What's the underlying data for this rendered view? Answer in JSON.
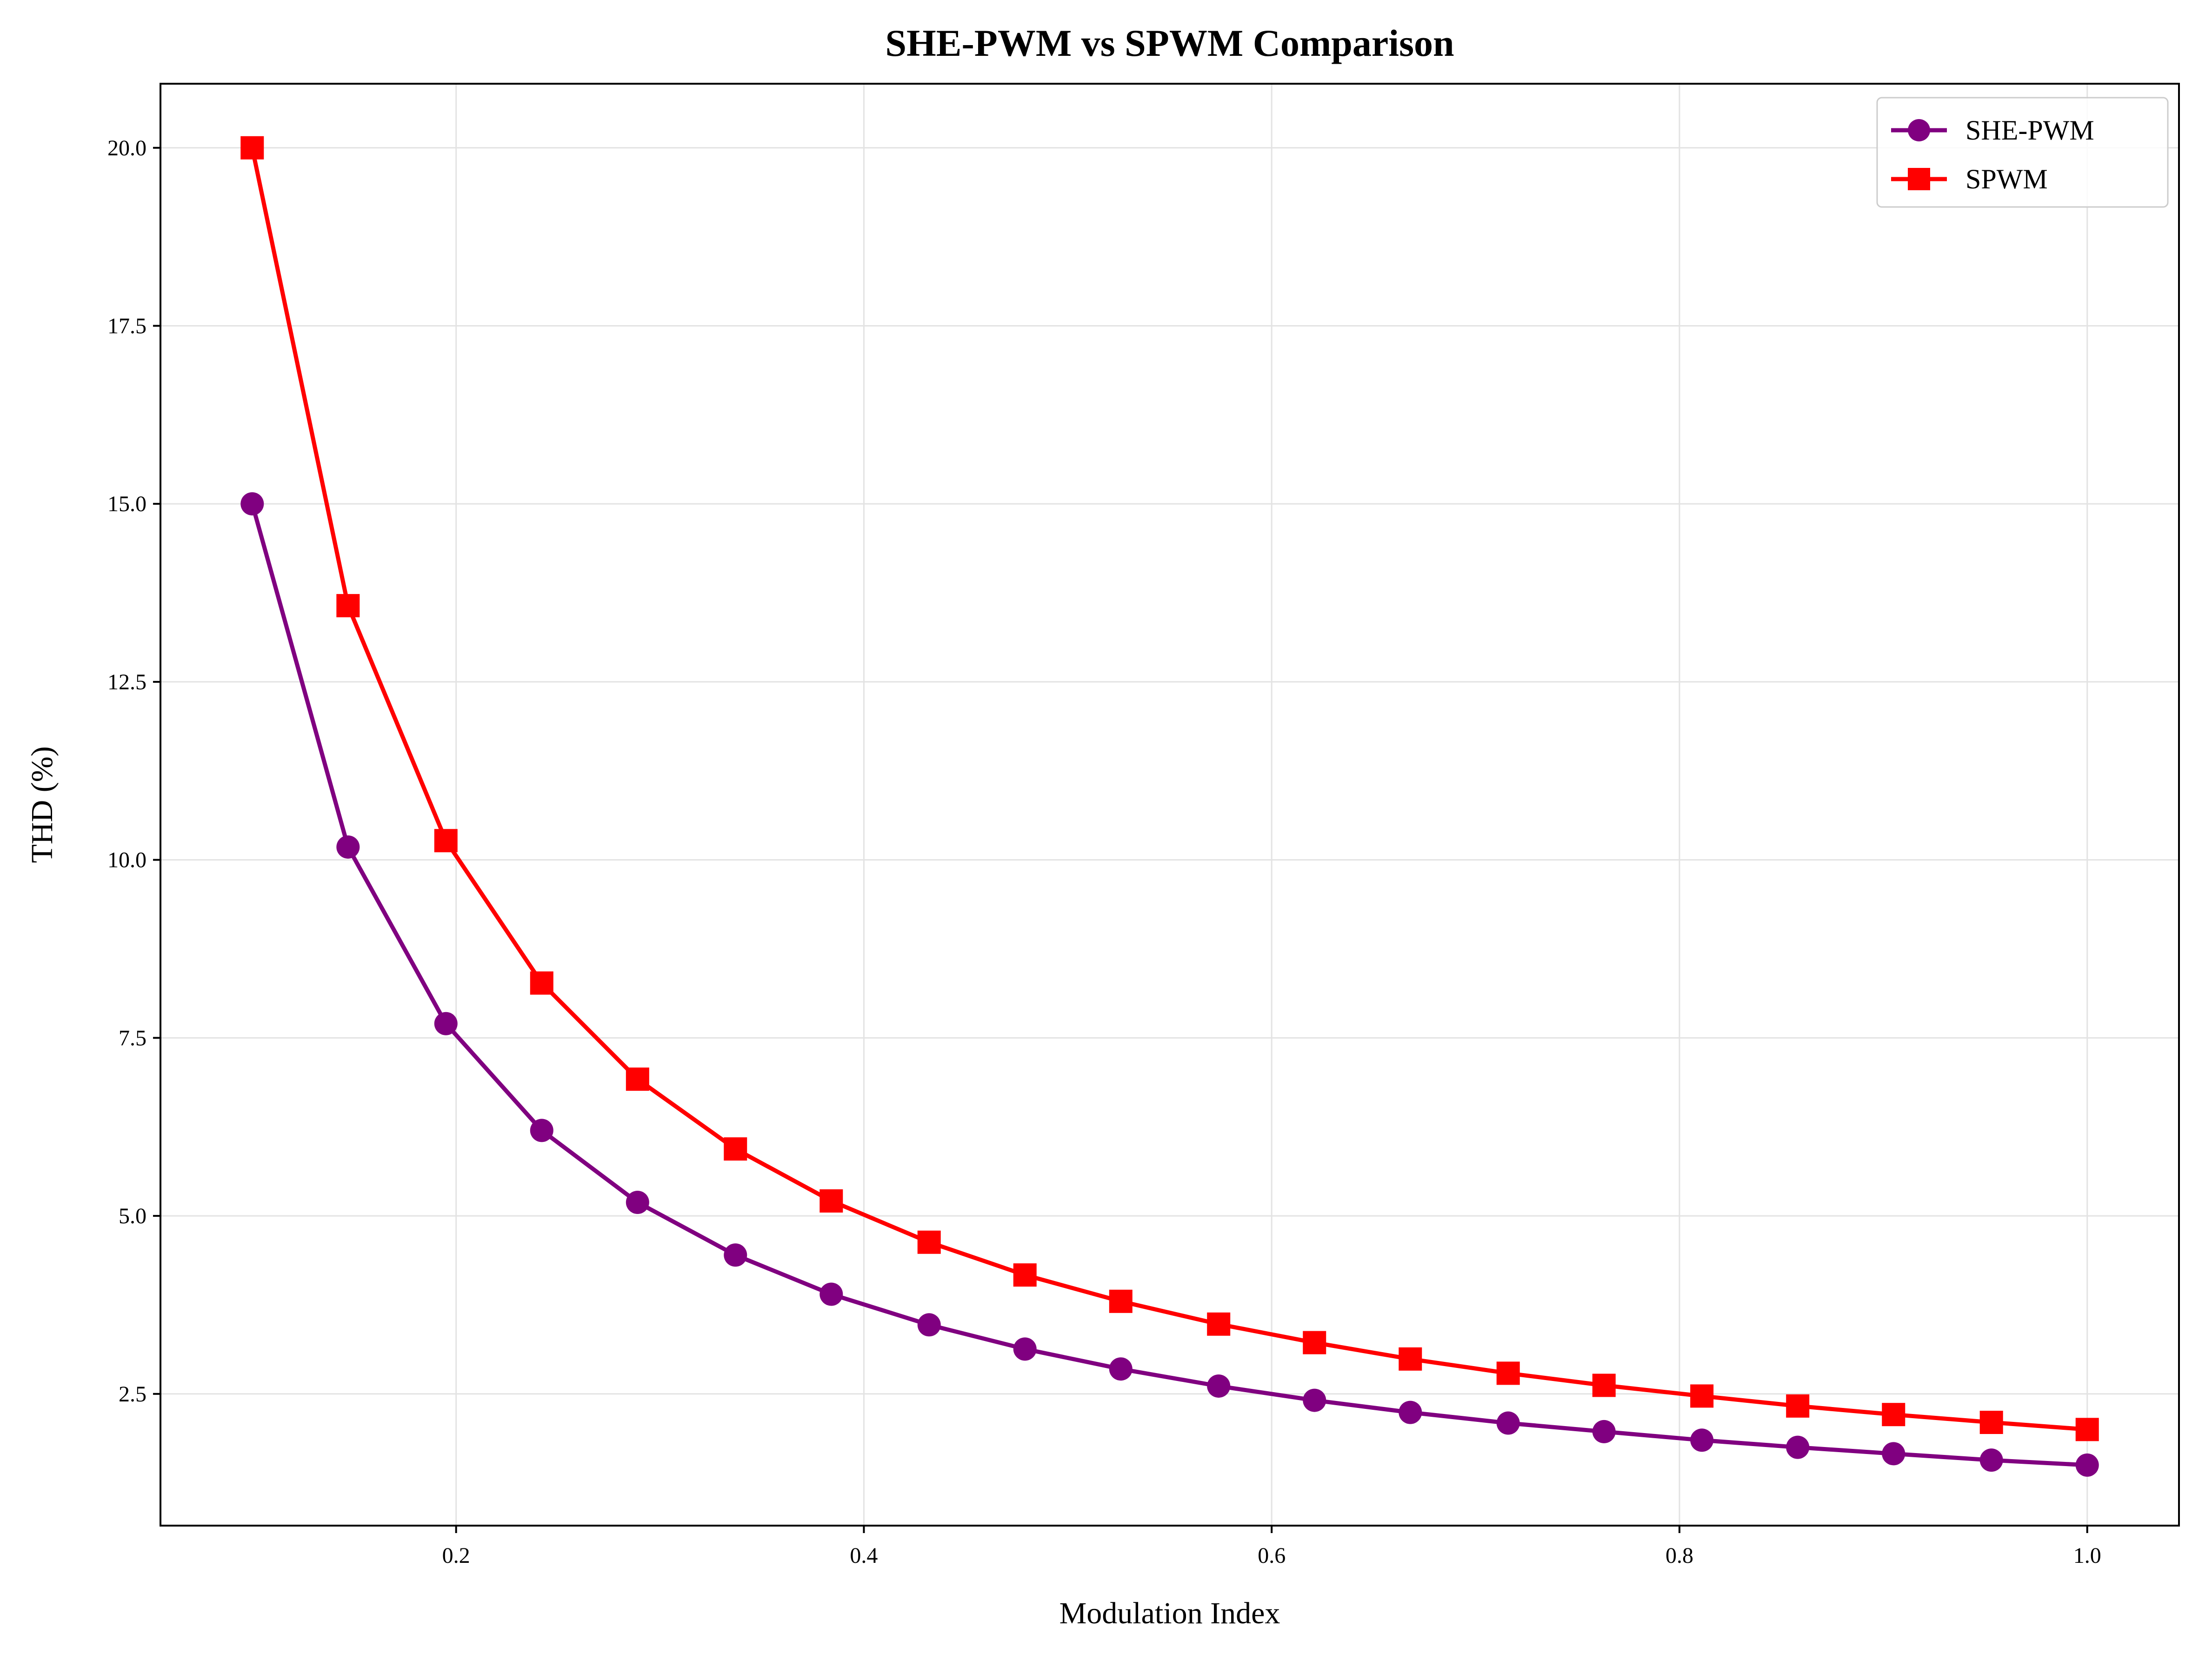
{
  "chart_data": {
    "type": "line",
    "title": "SHE-PWM vs SPWM Comparison",
    "xlabel": "Modulation Index",
    "ylabel": "THD (%)",
    "xlim": [
      0.055,
      1.045
    ],
    "ylim": [
      0.65,
      20.9
    ],
    "xticks": [
      0.2,
      0.4,
      0.6,
      0.8,
      1.0
    ],
    "xtick_labels": [
      "0.2",
      "0.4",
      "0.6",
      "0.8",
      "1.0"
    ],
    "yticks": [
      2.5,
      5.0,
      7.5,
      10.0,
      12.5,
      15.0,
      17.5,
      20.0
    ],
    "ytick_labels": [
      "2.5",
      "5.0",
      "7.5",
      "10.0",
      "12.5",
      "15.0",
      "17.5",
      "20.0"
    ],
    "grid": true,
    "legend_position": "top-right",
    "x": [
      0.1,
      0.147,
      0.195,
      0.242,
      0.289,
      0.337,
      0.384,
      0.432,
      0.479,
      0.526,
      0.574,
      0.621,
      0.668,
      0.716,
      0.763,
      0.811,
      0.858,
      0.905,
      0.953,
      1.0
    ],
    "series": [
      {
        "name": "SHE-PWM",
        "color": "#800080",
        "marker": "circle",
        "values": [
          15.0,
          10.18,
          7.7,
          6.2,
          5.19,
          4.45,
          3.9,
          3.47,
          3.13,
          2.85,
          2.61,
          2.41,
          2.24,
          2.09,
          1.97,
          1.85,
          1.75,
          1.66,
          1.57,
          1.5
        ]
      },
      {
        "name": "SPWM",
        "color": "#ff0000",
        "marker": "square",
        "values": [
          20.0,
          13.57,
          10.27,
          8.27,
          6.92,
          5.94,
          5.21,
          4.63,
          4.17,
          3.8,
          3.48,
          3.22,
          2.99,
          2.79,
          2.62,
          2.47,
          2.33,
          2.21,
          2.1,
          2.0
        ]
      }
    ]
  }
}
